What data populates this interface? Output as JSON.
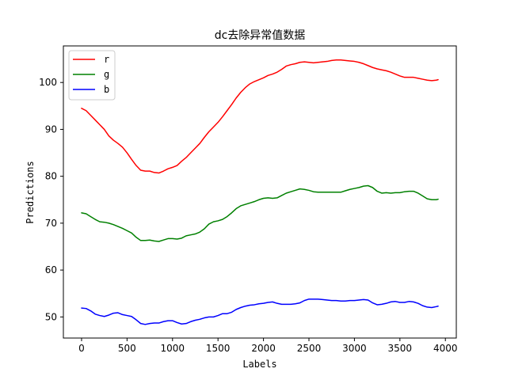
{
  "chart_data": {
    "type": "line",
    "title": "dc去除异常值数据",
    "xlabel": "Labels",
    "ylabel": "Predictions",
    "xlim": [
      -200,
      4120
    ],
    "ylim": [
      45.5,
      107.8
    ],
    "xticks": [
      0,
      500,
      1000,
      1500,
      2000,
      2500,
      3000,
      3500,
      4000
    ],
    "yticks": [
      50,
      60,
      70,
      80,
      90,
      100
    ],
    "grid": false,
    "legend_position": "top-left",
    "series": [
      {
        "name": "r",
        "color": "#ff0000",
        "x": [
          0,
          50,
          100,
          150,
          200,
          250,
          300,
          350,
          400,
          450,
          500,
          550,
          600,
          650,
          700,
          750,
          800,
          850,
          900,
          950,
          1000,
          1050,
          1100,
          1150,
          1200,
          1250,
          1300,
          1350,
          1400,
          1450,
          1500,
          1550,
          1600,
          1650,
          1700,
          1750,
          1800,
          1850,
          1900,
          1950,
          2000,
          2050,
          2100,
          2150,
          2200,
          2250,
          2300,
          2350,
          2400,
          2450,
          2500,
          2550,
          2600,
          2650,
          2700,
          2750,
          2800,
          2850,
          2900,
          2950,
          3000,
          3050,
          3100,
          3150,
          3200,
          3250,
          3300,
          3350,
          3400,
          3450,
          3500,
          3550,
          3600,
          3650,
          3700,
          3750,
          3800,
          3850,
          3900,
          3920
        ],
        "values": [
          94.5,
          94.0,
          93.0,
          92.0,
          91.0,
          90.0,
          88.6,
          87.7,
          87.0,
          86.2,
          85.0,
          83.6,
          82.3,
          81.3,
          81.1,
          81.1,
          80.8,
          80.7,
          81.1,
          81.6,
          81.9,
          82.3,
          83.2,
          84.0,
          85.0,
          86.0,
          87.0,
          88.3,
          89.5,
          90.5,
          91.5,
          92.7,
          94.0,
          95.3,
          96.7,
          97.9,
          98.9,
          99.7,
          100.2,
          100.6,
          101.0,
          101.5,
          101.8,
          102.2,
          102.8,
          103.5,
          103.8,
          104.0,
          104.3,
          104.4,
          104.3,
          104.2,
          104.3,
          104.4,
          104.5,
          104.7,
          104.8,
          104.8,
          104.7,
          104.6,
          104.5,
          104.3,
          104.0,
          103.6,
          103.2,
          102.9,
          102.7,
          102.5,
          102.2,
          101.8,
          101.4,
          101.1,
          101.1,
          101.1,
          100.9,
          100.7,
          100.5,
          100.4,
          100.5,
          100.6
        ]
      },
      {
        "name": "g",
        "color": "#008000",
        "x": [
          0,
          50,
          100,
          150,
          200,
          250,
          300,
          350,
          400,
          450,
          500,
          550,
          600,
          650,
          700,
          750,
          800,
          850,
          900,
          950,
          1000,
          1050,
          1100,
          1150,
          1200,
          1250,
          1300,
          1350,
          1400,
          1450,
          1500,
          1550,
          1600,
          1650,
          1700,
          1750,
          1800,
          1850,
          1900,
          1950,
          2000,
          2050,
          2100,
          2150,
          2200,
          2250,
          2300,
          2350,
          2400,
          2450,
          2500,
          2550,
          2600,
          2650,
          2700,
          2750,
          2800,
          2850,
          2900,
          2950,
          3000,
          3050,
          3100,
          3150,
          3200,
          3250,
          3300,
          3350,
          3400,
          3450,
          3500,
          3550,
          3600,
          3650,
          3700,
          3750,
          3800,
          3850,
          3900,
          3920
        ],
        "values": [
          72.2,
          72.0,
          71.4,
          70.8,
          70.3,
          70.2,
          70.0,
          69.7,
          69.3,
          68.9,
          68.4,
          67.9,
          67.0,
          66.3,
          66.3,
          66.4,
          66.2,
          66.1,
          66.4,
          66.7,
          66.7,
          66.6,
          66.8,
          67.3,
          67.5,
          67.7,
          68.1,
          68.8,
          69.8,
          70.3,
          70.5,
          70.8,
          71.4,
          72.2,
          73.1,
          73.7,
          74.0,
          74.3,
          74.6,
          75.0,
          75.3,
          75.4,
          75.3,
          75.4,
          75.9,
          76.4,
          76.7,
          77.0,
          77.3,
          77.2,
          77.0,
          76.7,
          76.6,
          76.6,
          76.6,
          76.6,
          76.6,
          76.6,
          76.9,
          77.2,
          77.4,
          77.6,
          77.9,
          78.0,
          77.6,
          76.8,
          76.4,
          76.5,
          76.4,
          76.5,
          76.5,
          76.7,
          76.8,
          76.8,
          76.4,
          75.8,
          75.2,
          75.0,
          75.0,
          75.1
        ]
      },
      {
        "name": "b",
        "color": "#0000ff",
        "x": [
          0,
          50,
          100,
          150,
          200,
          250,
          300,
          350,
          400,
          450,
          500,
          550,
          600,
          650,
          700,
          750,
          800,
          850,
          900,
          950,
          1000,
          1050,
          1100,
          1150,
          1200,
          1250,
          1300,
          1350,
          1400,
          1450,
          1500,
          1550,
          1600,
          1650,
          1700,
          1750,
          1800,
          1850,
          1900,
          1950,
          2000,
          2050,
          2100,
          2150,
          2200,
          2250,
          2300,
          2350,
          2400,
          2450,
          2500,
          2550,
          2600,
          2650,
          2700,
          2750,
          2800,
          2850,
          2900,
          2950,
          3000,
          3050,
          3100,
          3150,
          3200,
          3250,
          3300,
          3350,
          3400,
          3450,
          3500,
          3550,
          3600,
          3650,
          3700,
          3750,
          3800,
          3850,
          3900,
          3920
        ],
        "values": [
          51.9,
          51.8,
          51.3,
          50.6,
          50.3,
          50.1,
          50.4,
          50.8,
          50.9,
          50.5,
          50.3,
          50.1,
          49.4,
          48.6,
          48.4,
          48.6,
          48.7,
          48.7,
          49.0,
          49.2,
          49.2,
          48.8,
          48.5,
          48.6,
          49.0,
          49.3,
          49.5,
          49.8,
          50.0,
          50.0,
          50.3,
          50.7,
          50.7,
          51.0,
          51.6,
          52.0,
          52.3,
          52.5,
          52.6,
          52.8,
          52.9,
          53.1,
          53.2,
          52.9,
          52.7,
          52.7,
          52.7,
          52.8,
          53.0,
          53.5,
          53.8,
          53.8,
          53.8,
          53.7,
          53.6,
          53.5,
          53.5,
          53.4,
          53.4,
          53.5,
          53.5,
          53.6,
          53.7,
          53.6,
          53.0,
          52.6,
          52.7,
          52.9,
          53.2,
          53.3,
          53.1,
          53.1,
          53.3,
          53.2,
          52.9,
          52.4,
          52.1,
          52.0,
          52.2,
          52.3
        ]
      }
    ]
  }
}
